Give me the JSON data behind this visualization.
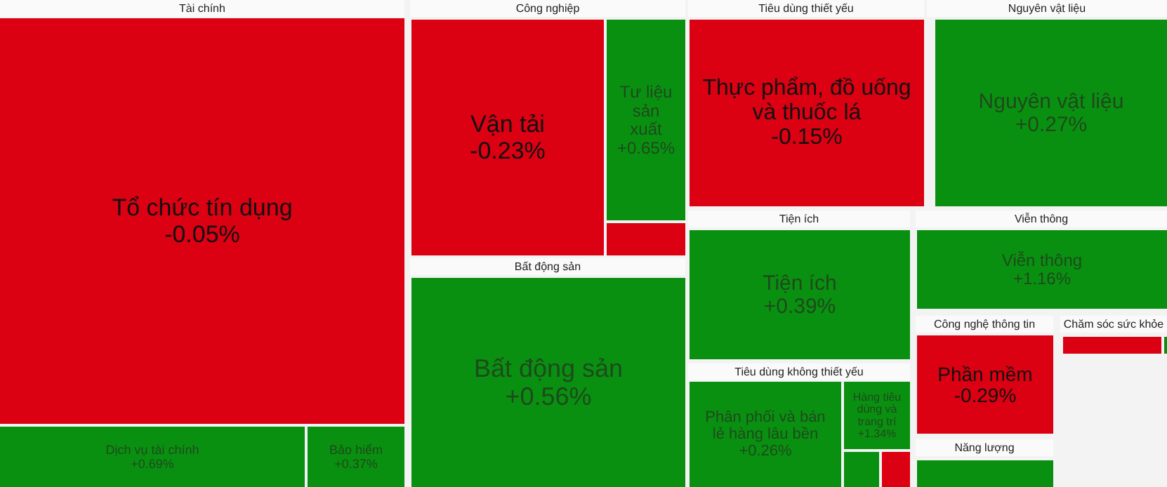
{
  "chart_data": {
    "type": "other",
    "annotations": [
      "Tài chính",
      "Công nghiệp",
      "Bất động sản",
      "Tiêu dùng thiết yếu",
      "Nguyên vật liệu",
      "Tiện ích",
      "Viễn thông",
      "Tiêu dùng không thiết yếu",
      "Công nghệ thông tin",
      "Chăm sóc sức khỏe",
      "Năng lượng"
    ],
    "categories": [
      "Tổ chức tín dụng",
      "Dịch vụ tài chính",
      "Bảo hiểm",
      "Vận tải",
      "Tư liệu sản xuất",
      null,
      "Bất động sản",
      "Thực phẩm, đồ uống và thuốc lá",
      "Nguyên vật liệu",
      "Tiện ích",
      "Viễn thông",
      "Phân phối và bán lẻ hàng lâu bền",
      "Hàng tiêu dùng và trang trí",
      null,
      null,
      "Phần mềm",
      null,
      null,
      null
    ],
    "values": [
      -0.05,
      0.69,
      0.37,
      -0.23,
      0.65,
      null,
      0.56,
      -0.15,
      0.27,
      0.39,
      1.16,
      0.26,
      1.34,
      null,
      null,
      -0.29,
      null,
      null,
      null
    ],
    "value_labels": [
      "-0.05%",
      "+0.69%",
      "+0.37%",
      "-0.23%",
      "+0.65%",
      null,
      "+0.56%",
      "-0.15%",
      "+0.27%",
      "+0.39%",
      "+1.16%",
      "+0.26%",
      "+1.34%",
      null,
      null,
      "-0.29%",
      null,
      null,
      null
    ],
    "colors": [
      "#db0012",
      "#0a9010",
      "#0a9010",
      "#db0012",
      "#0a9010",
      "#db0012",
      "#0a9010",
      "#db0012",
      "#0a9010",
      "#0a9010",
      "#0a9010",
      "#0a9010",
      "#0a9010",
      "#0a9010",
      "#db0012",
      "#db0012",
      "#db0012",
      "#0a9010",
      "#0a9010"
    ]
  }
}
